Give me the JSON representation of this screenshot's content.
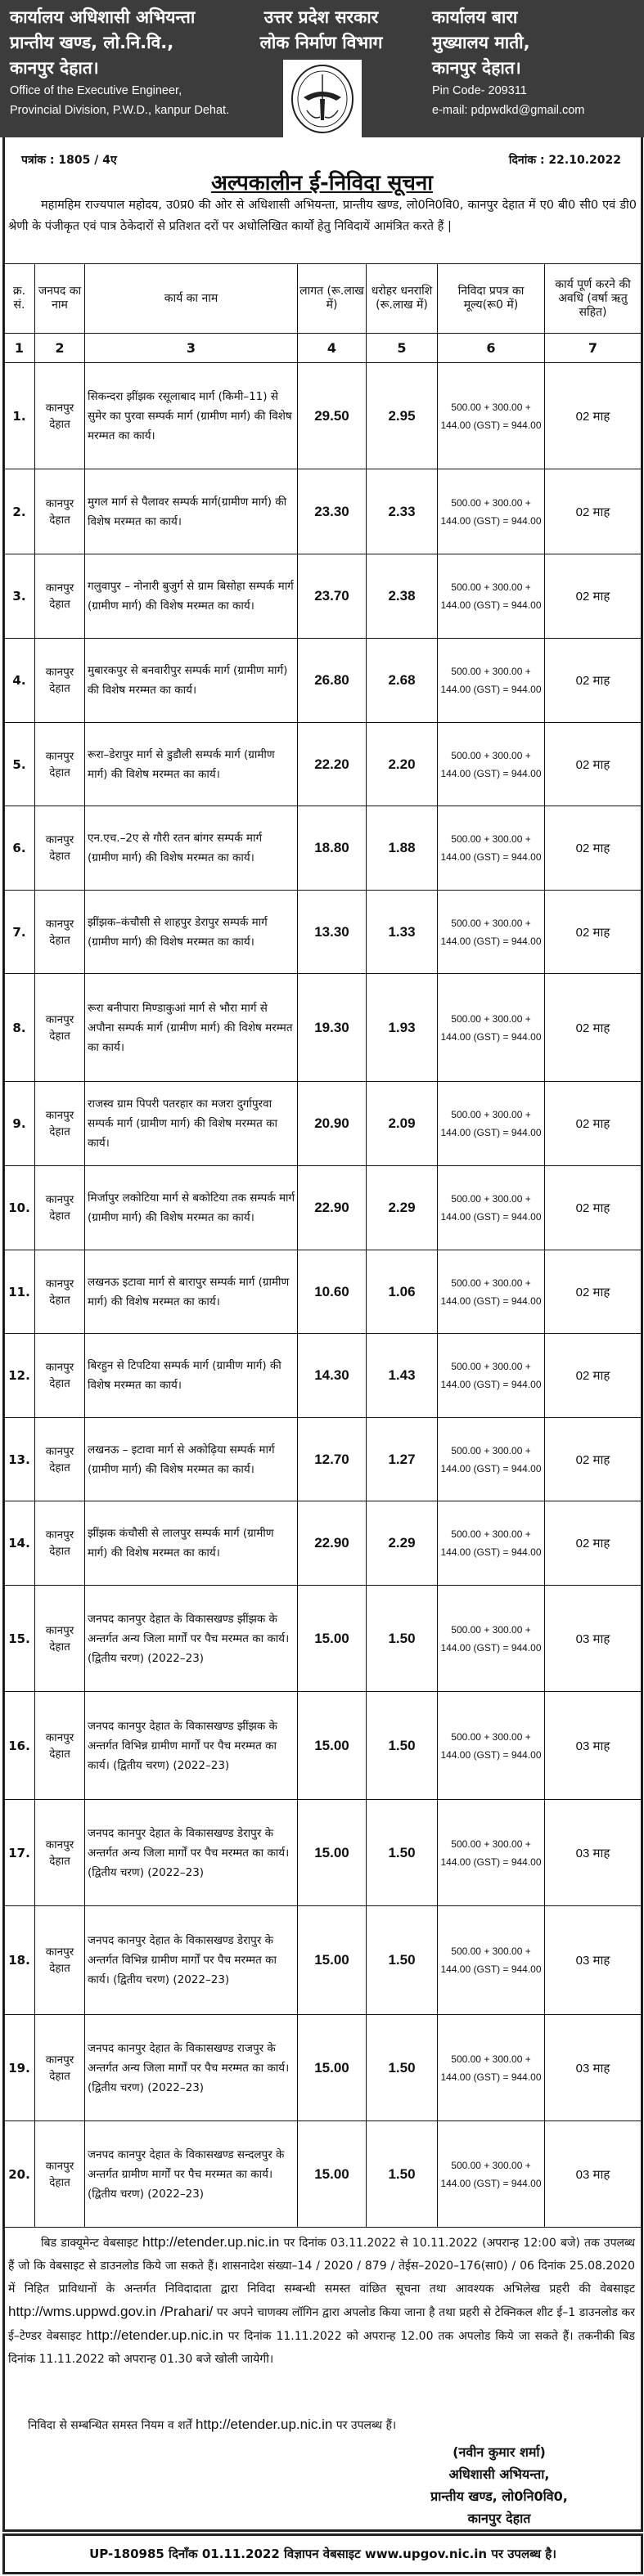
{
  "header": {
    "left": [
      "कार्यालय अधिशासी अभियन्ता",
      "प्रान्तीय खण्ड, लो.नि.वि.,",
      "कानपुर देहात।"
    ],
    "left_en": [
      "Office of the Executive Engineer,",
      "Provincial Division, P.W.D., kanpur Dehat."
    ],
    "center": [
      "उत्तर प्रदेश सरकार",
      "लोक निर्माण विभाग"
    ],
    "right": [
      "कार्यालय बारा",
      "मुख्यालय माती,",
      "कानपुर देहात।"
    ],
    "pin": "Pin Code- 209311",
    "email": "e-mail: pdpwdkd@gmail.com",
    "emblem_text": "उत्तर प्रदेश सरकार"
  },
  "notice": {
    "patrank": "पत्रांक : 1805 / 4ए",
    "dinank": "दिनांक : 22.10.2022",
    "title": "अल्पकालीन ई-निविदा सूचना",
    "intro": "महामहिम राज्यपाल महोदय, उ0प्र0 की ओर से अधिशासी अभियन्ता, प्रान्तीय खण्ड, लो0नि0वि0, कानपुर देहात में ए0 बी0 सी0 एवं डी0 श्रेणी के पंजीकृत एवं पात्र ठेकेदारों से प्रतिशत दरों पर अधोलिखित कार्यों हेतु निविदायें आमंत्रित करते हैं |"
  },
  "table": {
    "headers": [
      "क्र. सं.",
      "जनपद का नाम",
      "कार्य का नाम",
      "लागत (रू.लाख में)",
      "धरोहर धनराशि (रू.लाख में)",
      "निविदा प्रपत्र का मूल्य(रू0 में)",
      "कार्य पूर्ण करने की अवधि (वर्षा ऋतु सहित)"
    ],
    "col_numbers": [
      "1",
      "2",
      "3",
      "4",
      "5",
      "6",
      "7"
    ],
    "rows": [
      {
        "sn": "1.",
        "district": "कानपुर देहात",
        "work": "सिकन्दरा झींझक रसूलाबाद मार्ग (किमी–11) से सुमेर का पुरवा सम्पर्क मार्ग (ग्रामीण मार्ग) की विशेष मरम्मत का कार्य।",
        "cost": "29.50",
        "emd": "2.95",
        "fee": "500.00 + 300.00 + 144.00 (GST) = 944.00",
        "period": "02 माह"
      },
      {
        "sn": "2.",
        "district": "कानपुर देहात",
        "work": "मुगल मार्ग से पैलावर सम्पर्क मार्ग(ग्रामीण मार्ग) की विशेष मरम्मत का कार्य।",
        "cost": "23.30",
        "emd": "2.33",
        "fee": "500.00 + 300.00 + 144.00 (GST) = 944.00",
        "period": "02 माह"
      },
      {
        "sn": "3.",
        "district": "कानपुर देहात",
        "work": "गलुवापुर – नोनारी बुजुर्ग से ग्राम बिसोहा सम्पर्क मार्ग (ग्रामीण मार्ग) की विशेष मरम्मत का कार्य।",
        "cost": "23.70",
        "emd": "2.38",
        "fee": "500.00 + 300.00 + 144.00 (GST) = 944.00",
        "period": "02 माह"
      },
      {
        "sn": "4.",
        "district": "कानपुर देहात",
        "work": "मुबारकपुर से बनवारीपुर सम्पर्क मार्ग (ग्रामीण मार्ग) की विशेष मरम्मत का कार्य।",
        "cost": "26.80",
        "emd": "2.68",
        "fee": "500.00 + 300.00 + 144.00 (GST) = 944.00",
        "period": "02 माह"
      },
      {
        "sn": "5.",
        "district": "कानपुर देहात",
        "work": "रूरा–डेरापुर मार्ग से डुडौली सम्पर्क मार्ग (ग्रामीण मार्ग) की विशेष मरम्मत का कार्य।",
        "cost": "22.20",
        "emd": "2.20",
        "fee": "500.00 + 300.00 + 144.00 (GST) = 944.00",
        "period": "02 माह"
      },
      {
        "sn": "6.",
        "district": "कानपुर देहात",
        "work": "एन.एच.–2ए से गौरी रतन बांगर सम्पर्क मार्ग (ग्रामीण मार्ग) की विशेष मरम्मत का कार्य।",
        "cost": "18.80",
        "emd": "1.88",
        "fee": "500.00 + 300.00 + 144.00 (GST) = 944.00",
        "period": "02 माह"
      },
      {
        "sn": "7.",
        "district": "कानपुर देहात",
        "work": "झींझक–कंचौसी से शाहपुर डेरापुर सम्पर्क मार्ग (ग्रामीण मार्ग) की विशेष मरम्मत का कार्य।",
        "cost": "13.30",
        "emd": "1.33",
        "fee": "500.00 + 300.00 + 144.00 (GST) = 944.00",
        "period": "02 माह"
      },
      {
        "sn": "8.",
        "district": "कानपुर देहात",
        "work": "रूरा बनीपारा मिण्डाकुआं मार्ग से भौरा मार्ग से अपौना सम्पर्क मार्ग (ग्रामीण मार्ग) की विशेष मरम्मत का कार्य।",
        "cost": "19.30",
        "emd": "1.93",
        "fee": "500.00 + 300.00 + 144.00 (GST) = 944.00",
        "period": "02 माह"
      },
      {
        "sn": "9.",
        "district": "कानपुर देहात",
        "work": "राजस्व ग्राम पिपरी पतरहार का मजरा दुर्गापुरवा सम्पर्क मार्ग (ग्रामीण मार्ग) की विशेष मरम्मत का कार्य।",
        "cost": "20.90",
        "emd": "2.09",
        "fee": "500.00 + 300.00 + 144.00 (GST) = 944.00",
        "period": "02 माह"
      },
      {
        "sn": "10.",
        "district": "कानपुर देहात",
        "work": "मिर्जापुर लकोटिया मार्ग से बकोटिया तक सम्पर्क मार्ग (ग्रामीण मार्ग) की विशेष मरम्मत का कार्य।",
        "cost": "22.90",
        "emd": "2.29",
        "fee": "500.00 + 300.00 + 144.00 (GST) = 944.00",
        "period": "02 माह"
      },
      {
        "sn": "11.",
        "district": "कानपुर देहात",
        "work": "लखनऊ इटावा मार्ग से बारापुर सम्पर्क मार्ग (ग्रामीण मार्ग) की विशेष मरम्मत का कार्य।",
        "cost": "10.60",
        "emd": "1.06",
        "fee": "500.00 + 300.00 + 144.00 (GST) = 944.00",
        "period": "02 माह"
      },
      {
        "sn": "12.",
        "district": "कानपुर देहात",
        "work": "बिरहुन से टिपटिया सम्पर्क मार्ग (ग्रामीण मार्ग) की विशेष मरम्मत का कार्य।",
        "cost": "14.30",
        "emd": "1.43",
        "fee": "500.00 + 300.00 + 144.00 (GST) = 944.00",
        "period": "02 माह"
      },
      {
        "sn": "13.",
        "district": "कानपुर देहात",
        "work": "लखनऊ – इटावा मार्ग से अकोढ़िया सम्पर्क मार्ग (ग्रामीण मार्ग) की विशेष मरम्मत का कार्य।",
        "cost": "12.70",
        "emd": "1.27",
        "fee": "500.00 + 300.00 + 144.00 (GST) = 944.00",
        "period": "02 माह"
      },
      {
        "sn": "14.",
        "district": "कानपुर देहात",
        "work": "झींझक कंचौसी से लालपुर सम्पर्क मार्ग (ग्रामीण मार्ग) की विशेष मरम्मत का कार्य।",
        "cost": "22.90",
        "emd": "2.29",
        "fee": "500.00 + 300.00 + 144.00 (GST) = 944.00",
        "period": "02 माह"
      },
      {
        "sn": "15.",
        "district": "कानपुर देहात",
        "work": "जनपद कानपुर देहात के विकासखण्ड झींझक के अन्तर्गत अन्य जिला मार्गों पर पैच मरम्मत का कार्य। (द्वितीय चरण) (2022–23)",
        "cost": "15.00",
        "emd": "1.50",
        "fee": "500.00 + 300.00 + 144.00 (GST) = 944.00",
        "period": "03 माह"
      },
      {
        "sn": "16.",
        "district": "कानपुर देहात",
        "work": "जनपद कानपुर देहात के विकासखण्ड झींझक के अन्तर्गत विभिन्न ग्रामीण मार्गों पर पैच मरम्मत का कार्य। (द्वितीय चरण) (2022–23)",
        "cost": "15.00",
        "emd": "1.50",
        "fee": "500.00 + 300.00 + 144.00 (GST) = 944.00",
        "period": "03 माह"
      },
      {
        "sn": "17.",
        "district": "कानपुर देहात",
        "work": "जनपद कानपुर देहात के विकासखण्ड डेरापुर के अन्तर्गत अन्य जिला मार्गों पर पैच मरम्मत का कार्य। (द्वितीय चरण) (2022–23)",
        "cost": "15.00",
        "emd": "1.50",
        "fee": "500.00 + 300.00 + 144.00 (GST) = 944.00",
        "period": "03 माह"
      },
      {
        "sn": "18.",
        "district": "कानपुर देहात",
        "work": "जनपद कानपुर देहात के विकासखण्ड डेरापुर के अन्तर्गत विभिन्न ग्रामीण मार्गों पर पैच मरम्मत का कार्य। (द्वितीय चरण) (2022–23)",
        "cost": "15.00",
        "emd": "1.50",
        "fee": "500.00 + 300.00 + 144.00 (GST) = 944.00",
        "period": "03 माह"
      },
      {
        "sn": "19.",
        "district": "कानपुर देहात",
        "work": "जनपद कानपुर देहात के विकासखण्ड राजपुर के अन्तर्गत अन्य जिला मार्गों पर पैच मरम्मत का कार्य। (द्वितीय चरण) (2022–23)",
        "cost": "15.00",
        "emd": "1.50",
        "fee": "500.00 + 300.00 + 144.00 (GST) = 944.00",
        "period": "03 माह"
      },
      {
        "sn": "20.",
        "district": "कानपुर देहात",
        "work": "जनपद कानपुर देहात के विकासखण्ड सन्दलपुर के अन्तर्गत ग्रामीण मार्गों पर पैच मरम्मत का कार्य। (द्वितीय चरण) (2022–23)",
        "cost": "15.00",
        "emd": "1.50",
        "fee": "500.00 + 300.00 + 144.00 (GST) = 944.00",
        "period": "03 माह"
      }
    ]
  },
  "footer": {
    "p1": "बिड डाक्यूमेन्ट वेबसाइट",
    "url1": "http://etender.up.nic.in",
    "p2": "पर दिनांक 03.11.2022 से 10.11.2022 (अपरान्ह 12:00 बजे) तक उपलब्ध हैं जो कि वेबसाइट से डाउनलोड किये जा सकते हैं। शासनादेश संख्या–14 / 2020 / 879 / तेईस–2020–176(सा0) / 06 दिनांक 25.08.2020 में निहित प्राविधानों के अन्तर्गत निविदादाता द्वारा निविदा सम्बन्धी समस्त वांछित सूचना तथा आवश्यक अभिलेख प्रहरी की वेबसाइट",
    "url2": "http://wms.uppwd.gov.in /Prahari/",
    "p3": "पर अपने चाणक्य लॉगिन द्वारा अपलोड किया जाना है तथा प्रहरी से टेक्निकल शीट ई–1 डाउनलोड कर ई–टेण्डर वेबसाइट",
    "url3": "http://etender.up.nic.in",
    "p4": "पर दिनांक 11.11.2022 को अपरान्ह 12.00 तक अपलोड किये जा सकते हैं। तकनीकी बिड दिनांक 11.11.2022 को अपरान्ह 01.30 बजे खोली जायेगी।",
    "rules_pre": "निविदा से सम्बन्धित समस्त नियम व शर्तें",
    "rules_url": "http://etender.up.nic.in",
    "rules_post": "पर उपलब्ध हैं।",
    "signature": [
      "(नवीन कुमार शर्मा)",
      "अधिशासी अभियन्ता,",
      "प्रान्तीय खण्ड, लो0नि0वि0,",
      "कानपुर देहात"
    ],
    "bottom_bar": "UP-180985 दिनाँक 01.11.2022 विज्ञापन वेबसाइट www.upgov.nic.in पर उपलब्ध है।"
  }
}
